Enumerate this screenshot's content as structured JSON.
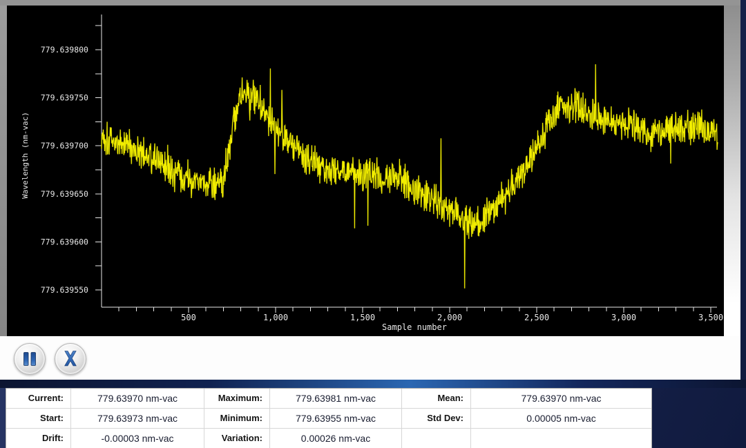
{
  "colors": {
    "trace": "#f2ee00",
    "trace_shadow": "#8f8d00",
    "chart_bg": "#000000",
    "axis": "#e8e8e8",
    "accent_blue": "#2b67b2",
    "window_navy": "#1d2a58",
    "frame_gray": "#949494",
    "glyph_blue_light": "#5b8fd0",
    "glyph_blue_dark": "#1d4a90"
  },
  "toolbar": {
    "pause_button": {
      "name": "pause",
      "icon": "pause-icon"
    },
    "close_button": {
      "name": "close",
      "icon": "close-icon",
      "glyph": "X"
    }
  },
  "chart_data": {
    "type": "line",
    "title": "",
    "xlabel": "Sample number",
    "ylabel": "Wavelength (nm-vac)",
    "legend": "none",
    "grid": false,
    "xlim": [
      0,
      3560
    ],
    "ylim": [
      779.639533,
      779.639837
    ],
    "x_major_ticks": [
      500,
      1000,
      1500,
      2000,
      2500,
      3000,
      3500
    ],
    "x_tick_labels": [
      "500",
      "1,000",
      "1,500",
      "2,000",
      "2,500",
      "3,000",
      "3,500"
    ],
    "x_minor_step": 100,
    "y_major_ticks": [
      779.63955,
      779.6396,
      779.63965,
      779.6397,
      779.63975,
      779.6398
    ],
    "y_tick_labels": [
      "779.639550",
      "779.639600",
      "779.639650",
      "779.639700",
      "779.639750",
      "779.639800"
    ],
    "y_minor_step": 2.5e-05,
    "n_samples": 3540,
    "sample_step": 2,
    "noise_pp": 4.2e-05,
    "spike_prob": 0.012,
    "spike_min": 2e-05,
    "spike_extra": 4.5e-05,
    "envelope": [
      [
        0,
        779.63971
      ],
      [
        150,
        779.6397
      ],
      [
        300,
        779.639685
      ],
      [
        450,
        779.639668
      ],
      [
        600,
        779.63966
      ],
      [
        700,
        779.639665
      ],
      [
        780,
        779.639742
      ],
      [
        830,
        779.639758
      ],
      [
        900,
        779.63975
      ],
      [
        1000,
        779.63972
      ],
      [
        1100,
        779.6397
      ],
      [
        1250,
        779.63968
      ],
      [
        1400,
        779.639672
      ],
      [
        1550,
        779.63967
      ],
      [
        1700,
        779.639668
      ],
      [
        1850,
        779.63965
      ],
      [
        2000,
        779.639634
      ],
      [
        2150,
        779.639618
      ],
      [
        2250,
        779.639634
      ],
      [
        2350,
        779.639655
      ],
      [
        2450,
        779.63968
      ],
      [
        2550,
        779.639718
      ],
      [
        2650,
        779.639745
      ],
      [
        2750,
        779.63974
      ],
      [
        2850,
        779.63973
      ],
      [
        3000,
        779.639724
      ],
      [
        3150,
        779.639712
      ],
      [
        3300,
        779.639718
      ],
      [
        3450,
        779.639721
      ],
      [
        3540,
        779.63971
      ]
    ],
    "observed_stats": {
      "current": 779.6397,
      "start": 779.63973,
      "drift": -3e-05,
      "maximum": 779.63981,
      "minimum": 779.63955,
      "variation": 0.00026,
      "mean": 779.6397,
      "std_dev": 5e-05,
      "units": "nm-vac"
    }
  },
  "stats": {
    "rows": [
      [
        {
          "label": "Current:",
          "value": "779.63970 nm-vac"
        },
        {
          "label": "Maximum:",
          "value": "779.63981 nm-vac"
        },
        {
          "label": "Mean:",
          "value": "779.63970 nm-vac"
        }
      ],
      [
        {
          "label": "Start:",
          "value": "779.63973 nm-vac"
        },
        {
          "label": "Minimum:",
          "value": "779.63955 nm-vac"
        },
        {
          "label": "Std Dev:",
          "value": "0.00005 nm-vac"
        }
      ],
      [
        {
          "label": "Drift:",
          "value": "-0.00003 nm-vac"
        },
        {
          "label": "Variation:",
          "value": "0.00026 nm-vac"
        },
        {
          "label": "",
          "value": ""
        }
      ]
    ]
  }
}
